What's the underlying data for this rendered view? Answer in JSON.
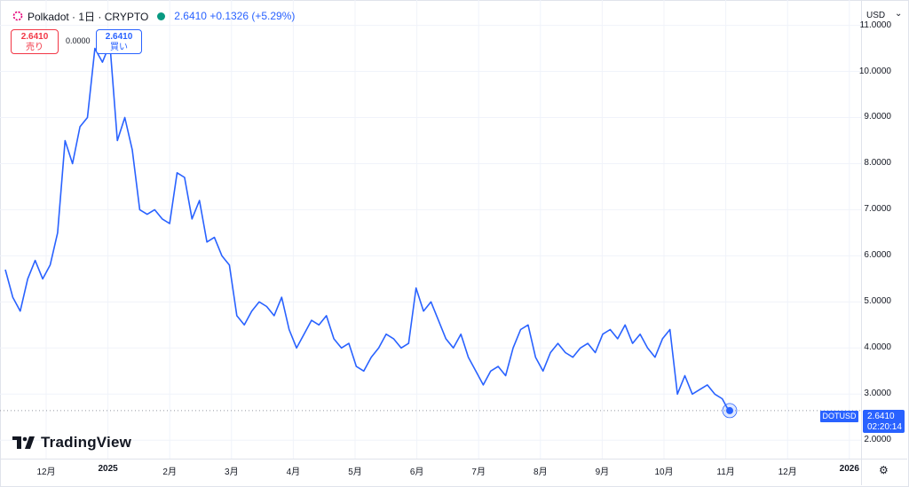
{
  "header": {
    "symbol_title": "Polkadot · 1日 · CRYPTO",
    "price_change": "2.6410 +0.1326 (+5.29%)",
    "market_status_color": "#089981",
    "icon": "polkadot-logo-icon"
  },
  "quote": {
    "sell_price": "2.6410",
    "sell_label": "売り",
    "spread": "0.0000",
    "buy_price": "2.6410",
    "buy_label": "買い"
  },
  "y_axis": {
    "currency": "USD",
    "ticks": [
      "11.0000",
      "10.0000",
      "9.0000",
      "8.0000",
      "7.0000",
      "6.0000",
      "5.0000",
      "4.0000",
      "3.0000",
      "2.0000"
    ]
  },
  "x_axis": {
    "ticks": [
      "12月",
      "2025",
      "2月",
      "3月",
      "4月",
      "5月",
      "6月",
      "7月",
      "8月",
      "9月",
      "10月",
      "11月",
      "12月",
      "2026"
    ]
  },
  "price_tag": {
    "symbol": "DOTUSD",
    "price": "2.6410",
    "countdown": "02:20:14"
  },
  "branding": {
    "logo_text": "TradingView",
    "logo_icon": "tradingview-logo-icon"
  },
  "colors": {
    "line": "#2962ff",
    "sell": "#f23645",
    "buy": "#2962ff"
  },
  "chart_data": {
    "type": "line",
    "series": [
      {
        "values": [
          5.7,
          5.1,
          4.8,
          5.5,
          5.9,
          5.5,
          5.8,
          6.5,
          8.5,
          8.0,
          8.8,
          9.0,
          10.5,
          10.2,
          10.6,
          8.5,
          9.0,
          8.3,
          7.0,
          6.9,
          7.0,
          6.8,
          6.7,
          7.8,
          7.7,
          6.8,
          7.2,
          6.3,
          6.4,
          6.0,
          5.8,
          4.7,
          4.5,
          4.8,
          5.0,
          4.9,
          4.7,
          5.1,
          4.4,
          4.0,
          4.3,
          4.6,
          4.5,
          4.7,
          4.2,
          4.0,
          4.1,
          3.6,
          3.5,
          3.8,
          4.0,
          4.3,
          4.2,
          4.0,
          4.1,
          5.3,
          4.8,
          5.0,
          4.6,
          4.2,
          4.0,
          4.3,
          3.8,
          3.5,
          3.2,
          3.5,
          3.6,
          3.4,
          4.0,
          4.4,
          4.5,
          3.8,
          3.5,
          3.9,
          4.1,
          3.9,
          3.8,
          4.0,
          4.1,
          3.9,
          4.3,
          4.4,
          4.2,
          4.5,
          4.1,
          4.3,
          4.0,
          3.8,
          4.2,
          4.4,
          3.0,
          3.4,
          3.0,
          3.1,
          3.2,
          3.0,
          2.9,
          2.6
        ]
      }
    ],
    "ylim": [
      1.6,
      11.55
    ],
    "grid": true,
    "last_value": 2.641
  }
}
